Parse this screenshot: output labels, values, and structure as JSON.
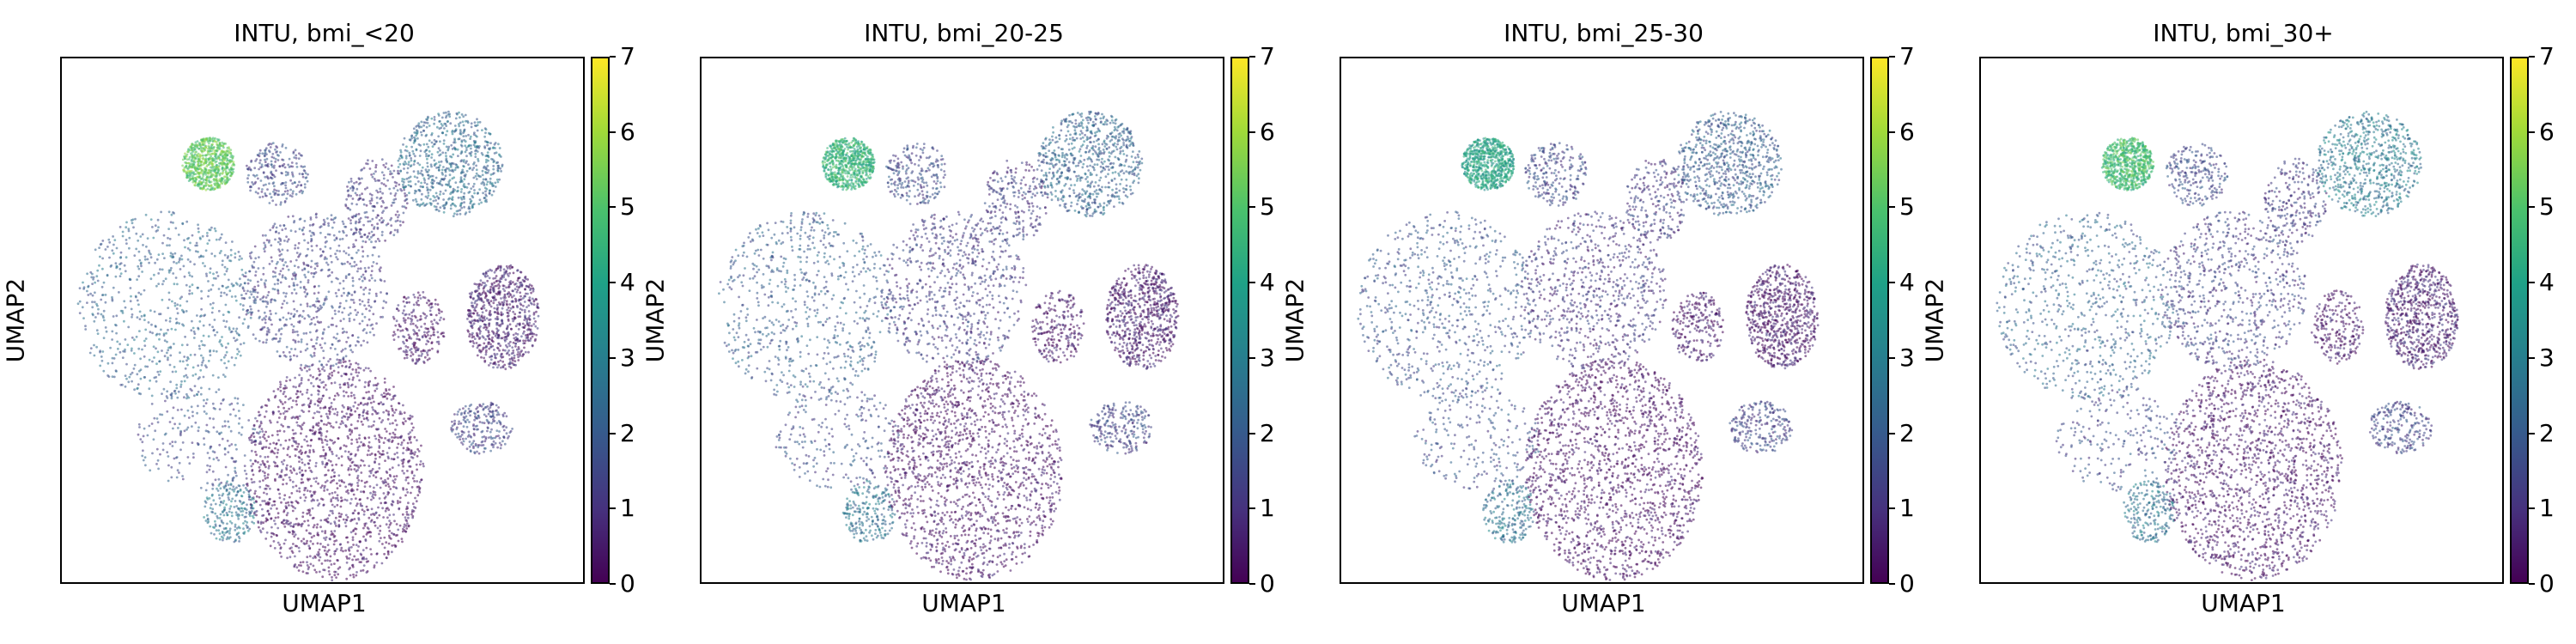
{
  "chart_data": [
    {
      "type": "scatter",
      "title": "INTU, bmi_<20",
      "xlabel": "UMAP1",
      "ylabel": "UMAP2",
      "colorbar": {
        "colormap": "viridis",
        "range": [
          0,
          7
        ],
        "ticks": [
          "0",
          "1",
          "2",
          "3",
          "4",
          "5",
          "6",
          "7"
        ]
      },
      "clusters": [
        {
          "name": "bottom-center large",
          "mean_value": 0.3
        },
        {
          "name": "left large",
          "mean_value": 2.2
        },
        {
          "name": "center fan",
          "mean_value": 1.4
        },
        {
          "name": "top-right",
          "mean_value": 2.4
        },
        {
          "name": "right oval",
          "mean_value": 0.6
        },
        {
          "name": "small top-left",
          "mean_value": 5.2
        }
      ]
    },
    {
      "type": "scatter",
      "title": "INTU, bmi_20-25",
      "xlabel": "UMAP1",
      "ylabel": "UMAP2",
      "colorbar": {
        "colormap": "viridis",
        "range": [
          0,
          7
        ],
        "ticks": [
          "0",
          "1",
          "2",
          "3",
          "4",
          "5",
          "6",
          "7"
        ]
      },
      "clusters": [
        {
          "name": "bottom-center large",
          "mean_value": 0.3
        },
        {
          "name": "left large",
          "mean_value": 2.0
        },
        {
          "name": "center fan",
          "mean_value": 1.2
        },
        {
          "name": "top-right",
          "mean_value": 2.2
        },
        {
          "name": "right oval",
          "mean_value": 0.5
        },
        {
          "name": "small top-left",
          "mean_value": 4.5
        }
      ]
    },
    {
      "type": "scatter",
      "title": "INTU, bmi_25-30",
      "xlabel": "UMAP1",
      "ylabel": "UMAP2",
      "colorbar": {
        "colormap": "viridis",
        "range": [
          0,
          7
        ],
        "ticks": [
          "0",
          "1",
          "2",
          "3",
          "4",
          "5",
          "6",
          "7"
        ]
      },
      "clusters": [
        {
          "name": "bottom-center large",
          "mean_value": 0.2
        },
        {
          "name": "left large",
          "mean_value": 1.8
        },
        {
          "name": "center fan",
          "mean_value": 1.1
        },
        {
          "name": "top-right",
          "mean_value": 2.0
        },
        {
          "name": "right oval",
          "mean_value": 0.4
        },
        {
          "name": "small top-left",
          "mean_value": 4.0
        }
      ]
    },
    {
      "type": "scatter",
      "title": "INTU, bmi_30+",
      "xlabel": "UMAP1",
      "ylabel": "UMAP2",
      "colorbar": {
        "colormap": "viridis",
        "range": [
          0,
          7
        ],
        "ticks": [
          "0",
          "1",
          "2",
          "3",
          "4",
          "5",
          "6",
          "7"
        ]
      },
      "clusters": [
        {
          "name": "bottom-center large",
          "mean_value": 0.3
        },
        {
          "name": "left large",
          "mean_value": 2.1
        },
        {
          "name": "center fan",
          "mean_value": 1.3
        },
        {
          "name": "top-right",
          "mean_value": 2.8
        },
        {
          "name": "right oval",
          "mean_value": 0.6
        },
        {
          "name": "small top-left",
          "mean_value": 4.8
        }
      ]
    }
  ]
}
